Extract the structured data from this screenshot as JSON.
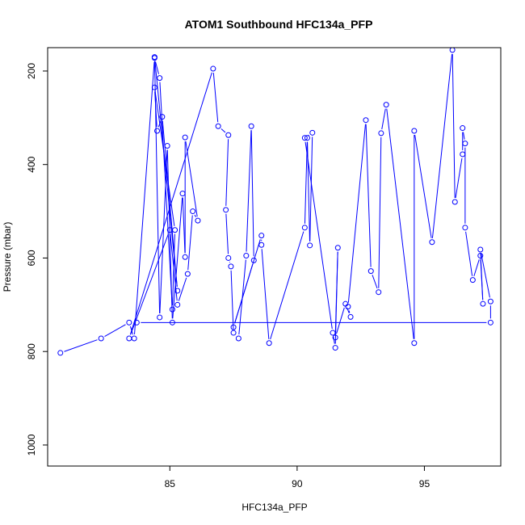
{
  "chart_data": {
    "type": "line",
    "title": "ATOM1 Southbound HFC134a_PFP",
    "xlabel": "HFC134a_PFP",
    "ylabel": "Pressure (mbar)",
    "xlim": [
      80.2,
      98.0
    ],
    "ylim": [
      1045,
      150
    ],
    "x_ticks": [
      85,
      90,
      95
    ],
    "x_tick_labels": [
      "85",
      "90",
      "95"
    ],
    "y_ticks": [
      200,
      400,
      600,
      800,
      1000
    ],
    "y_tick_labels": [
      "200",
      "400",
      "600",
      "800",
      "1000"
    ],
    "grid": false,
    "legend": "none",
    "series_color": "#0000ff",
    "series": [
      {
        "x": [
          80.7,
          82.3,
          83.4,
          83.6,
          84.4,
          84.6,
          85.1,
          85.2,
          84.4,
          84.5,
          84.7,
          85.3,
          84.4,
          84.6,
          84.9,
          85.1,
          85.5,
          85.6,
          85.6,
          86.1,
          85.9,
          85.7,
          85.3,
          85.0,
          83.4,
          86.7,
          86.9,
          87.3,
          87.2,
          87.3,
          87.4,
          87.5,
          87.7,
          88.0,
          88.2,
          88.3,
          87.5,
          88.6,
          88.6,
          88.9,
          90.3,
          90.4,
          90.5,
          90.6,
          90.3,
          91.4,
          91.5,
          91.6,
          91.5,
          91.9,
          92.1,
          92.0,
          92.7,
          92.9,
          93.2,
          93.3,
          93.5,
          94.6,
          94.6,
          95.3,
          96.1,
          96.2,
          96.5,
          96.5,
          96.6,
          96.6,
          96.9,
          97.2,
          97.3,
          97.2,
          97.6,
          97.6,
          83.7
        ],
        "y": [
          803,
          772,
          738,
          772,
          172,
          215,
          710,
          540,
          235,
          328,
          298,
          670,
          170,
          727,
          360,
          738,
          462,
          598,
          342,
          520,
          500,
          634,
          700,
          540,
          772,
          195,
          318,
          337,
          497,
          600,
          618,
          760,
          772,
          595,
          318,
          605,
          748,
          552,
          572,
          782,
          535,
          343,
          573,
          332,
          343,
          760,
          792,
          578,
          770,
          698,
          726,
          704,
          305,
          628,
          673,
          333,
          272,
          782,
          328,
          566,
          155,
          480,
          378,
          322,
          355,
          535,
          647,
          595,
          698,
          582,
          693,
          738,
          738
        ]
      }
    ]
  }
}
